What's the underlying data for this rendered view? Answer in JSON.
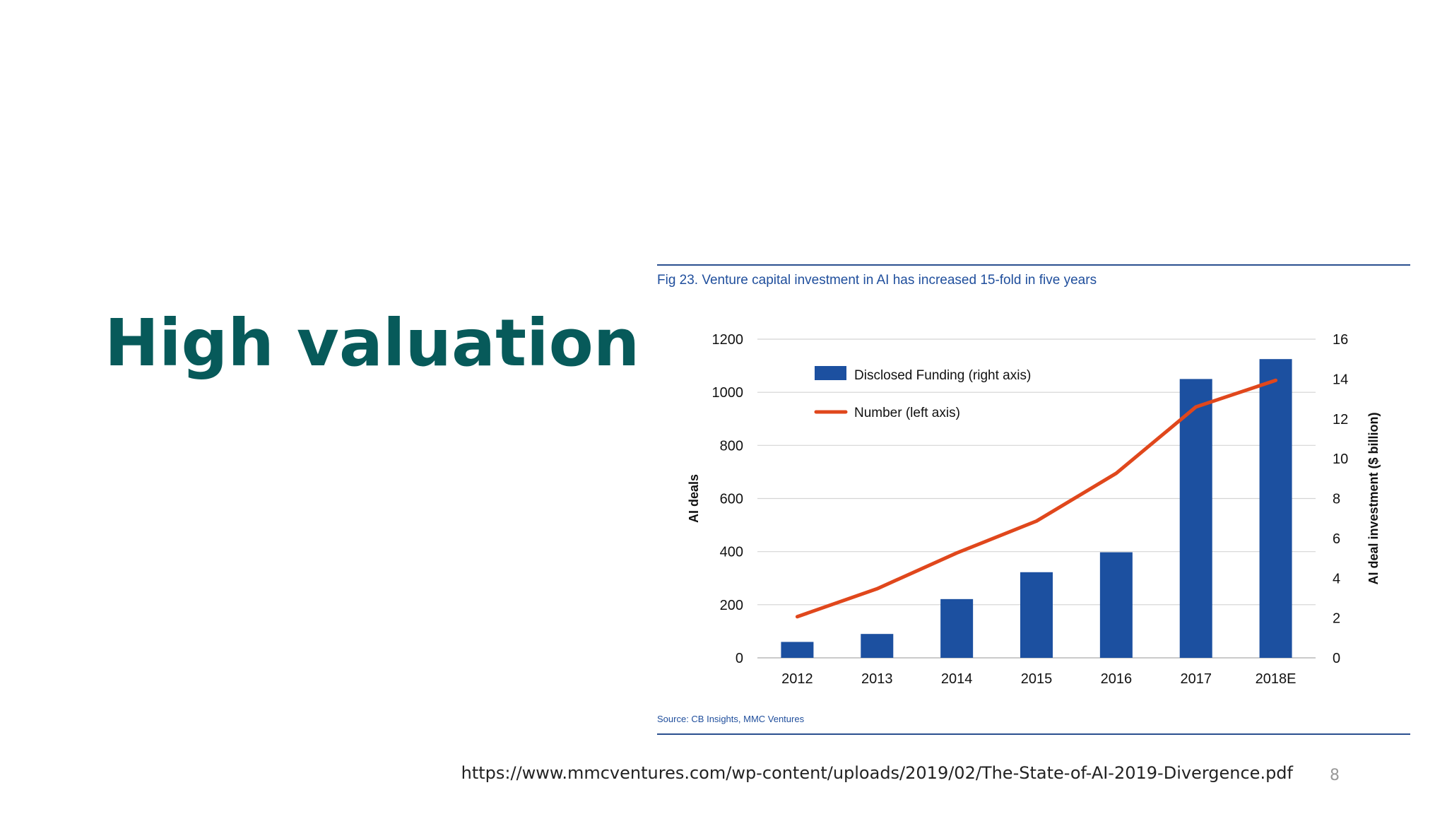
{
  "slide": {
    "title": "High valuation",
    "source_url": "https://www.mmcventures.com/wp-content/uploads/2019/02/The-State-of-AI-2019-Divergence.pdf",
    "page_number": "8"
  },
  "figure": {
    "caption": "Fig 23. Venture capital investment in AI has increased 15-fold in five years",
    "source": "Source: CB Insights, MMC Ventures"
  },
  "colors": {
    "title": "#075a5a",
    "bar": "#1c50a0",
    "line": "#e0471c",
    "grid": "#d4d4d4",
    "rule": "#2a4f8f"
  },
  "chart_data": {
    "type": "bar",
    "categories": [
      "2012",
      "2013",
      "2014",
      "2015",
      "2016",
      "2017",
      "2018E"
    ],
    "series": [
      {
        "name": "Disclosed Funding (right axis)",
        "type": "bar",
        "axis": "right",
        "values": [
          0.8,
          1.2,
          2.95,
          4.3,
          5.3,
          14.0,
          15.0
        ]
      },
      {
        "name": "Number (left axis)",
        "type": "line",
        "axis": "left",
        "values": [
          155,
          260,
          395,
          515,
          695,
          945,
          1045
        ]
      }
    ],
    "ylabel": "AI deals",
    "y2label": "AI deal investment ($ billion)",
    "ylim": [
      0,
      1200
    ],
    "y2lim": [
      0,
      16
    ],
    "yticks": [
      "0",
      "200",
      "400",
      "600",
      "800",
      "1000",
      "1200"
    ],
    "y2ticks": [
      "0",
      "2",
      "4",
      "6",
      "8",
      "10",
      "12",
      "14",
      "16"
    ],
    "grid": true,
    "legend": "top-left"
  }
}
